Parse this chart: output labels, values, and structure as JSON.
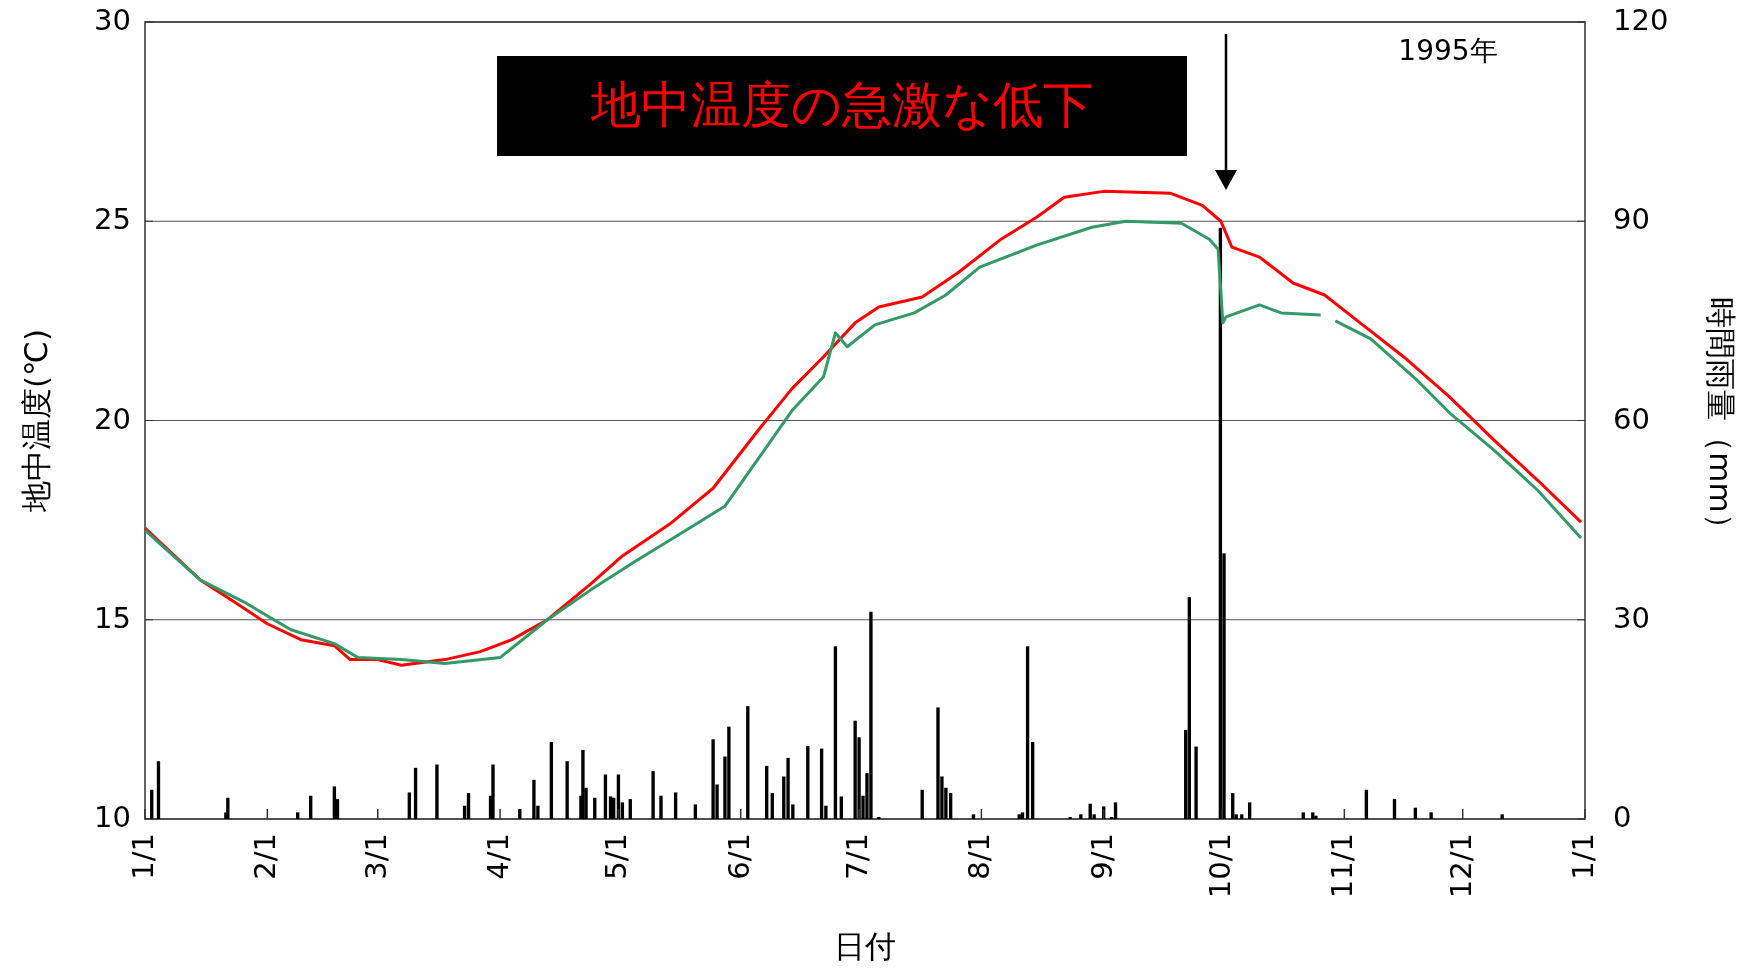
{
  "chart_data": {
    "type": "line",
    "xlabel": "日付",
    "ylabel": "地中温度(℃)",
    "y2label": "時間雨量（mm）",
    "xlim": [
      "1995-01-01",
      "1996-01-01"
    ],
    "xticks": [
      {
        "value": "1995-01-01",
        "label": "1/1"
      },
      {
        "value": "1995-02-01",
        "label": "2/1"
      },
      {
        "value": "1995-03-01",
        "label": "3/1"
      },
      {
        "value": "1995-04-01",
        "label": "4/1"
      },
      {
        "value": "1995-05-01",
        "label": "5/1"
      },
      {
        "value": "1995-06-01",
        "label": "6/1"
      },
      {
        "value": "1995-07-01",
        "label": "7/1"
      },
      {
        "value": "1995-08-01",
        "label": "8/1"
      },
      {
        "value": "1995-09-01",
        "label": "9/1"
      },
      {
        "value": "1995-10-01",
        "label": "10/1"
      },
      {
        "value": "1995-11-01",
        "label": "11/1"
      },
      {
        "value": "1995-12-01",
        "label": "12/1"
      },
      {
        "value": "1996-01-01",
        "label": "1/1"
      }
    ],
    "ylim": [
      10,
      30
    ],
    "yticks": [
      10,
      15,
      20,
      25,
      30
    ],
    "y2lim": [
      0,
      120
    ],
    "y2ticks": [
      0,
      30,
      60,
      90,
      120
    ],
    "grid": "y",
    "legend": false,
    "annotations": [
      "地中温度の急激な低下",
      "1995年"
    ],
    "series": [
      {
        "type": "bar",
        "axis": "y2",
        "color": "#000000",
        "x": [
          "1995-01-02T17:00",
          "1995-01-04T10:00",
          "1995-01-21T12:00",
          "1995-01-22",
          "1995-02-08T17:00",
          "1995-02-12",
          "1995-02-18",
          "1995-02-18T19:00",
          "1995-03-09",
          "1995-03-10T14:00",
          "1995-03-16",
          "1995-03-23",
          "1995-03-24",
          "1995-03-29T14:00",
          "1995-03-30T05:00",
          "1995-04-06",
          "1995-04-09T14:00",
          "1995-04-10T14:00",
          "1995-04-14",
          "1995-04-18",
          "1995-04-21T12:00",
          "1995-04-22",
          "1995-04-22T19:00",
          "1995-04-25",
          "1995-04-27T17:00",
          "1995-04-29",
          "1995-04-29T19:00",
          "1995-05-01",
          "1995-05-02",
          "1995-05-04",
          "1995-05-09T19:00",
          "1995-05-11T19:00",
          "1995-05-15T12:00",
          "1995-05-20T12:00",
          "1995-05-25",
          "1995-05-26",
          "1995-05-28",
          "1995-05-29",
          "1995-06-02T19:00",
          "1995-06-07T14:00",
          "1995-06-09",
          "1995-06-11T22:00",
          "1995-06-13",
          "1995-06-14T05:00",
          "1995-06-18",
          "1995-06-21T12:00",
          "1995-06-22T14:00",
          "1995-06-25",
          "1995-06-26T12:00",
          "1995-06-30",
          "1995-07-01",
          "1995-07-02",
          "1995-07-03",
          "1995-07-04",
          "1995-07-06",
          "1995-07-17",
          "1995-07-21",
          "1995-07-22",
          "1995-07-23",
          "1995-07-24T05:00",
          "1995-07-30",
          "1995-08-10T14:00",
          "1995-08-11T10:00",
          "1995-08-12T17:00",
          "1995-08-14",
          "1995-08-23T12:00",
          "1995-08-26T05:00",
          "1995-08-28T14:00",
          "1995-08-29T14:00",
          "1995-09-01",
          "1995-09-03",
          "1995-09-04",
          "1995-09-21T19:00",
          "1995-09-22T17:00",
          "1995-09-24T10:00",
          "1995-09-30T14:00",
          "1995-10-01T12:00",
          "1995-10-03T17:00",
          "1995-10-04T14:00",
          "1995-10-06",
          "1995-10-08",
          "1995-10-21T14:00",
          "1995-10-24",
          "1995-10-24T19:00",
          "1995-11-06T14:00",
          "1995-11-13T17:00",
          "1995-11-19",
          "1995-11-23",
          "1995-12-11"
        ],
        "values": [
          4.4,
          8.7,
          1,
          3.2,
          1,
          3.5,
          4.9,
          3,
          4,
          7.7,
          8.2,
          2,
          3.9,
          3.5,
          8.2,
          1.5,
          5.9,
          2,
          11.6,
          8.7,
          3.5,
          10.4,
          4.7,
          3.2,
          6.7,
          3.4,
          3.2,
          6.7,
          2.5,
          3,
          7.2,
          3.5,
          4,
          2.2,
          12,
          5.2,
          9.4,
          13.9,
          17,
          8,
          3.9,
          6.4,
          9.2,
          2.2,
          11,
          10.6,
          2,
          26,
          3.4,
          14.8,
          12.3,
          3.5,
          6.9,
          31.2,
          0.3,
          4.4,
          16.8,
          6.4,
          4.7,
          3.9,
          0.7,
          0.7,
          1,
          26,
          11.6,
          0.3,
          0.7,
          2.3,
          0.7,
          1.9,
          0.3,
          2.5,
          13.4,
          33.4,
          10.9,
          89,
          40,
          3.9,
          0.7,
          0.7,
          2.5,
          1,
          1,
          0.5,
          4.4,
          3,
          1.7,
          1,
          0.7
        ]
      },
      {
        "color": "#ff0000",
        "x": [
          "1995-01-01",
          "1995-01-15",
          "1995-01-23T14:00",
          "1995-02-01",
          "1995-02-09T12:00",
          "1995-02-18",
          "1995-02-22",
          "1995-03-01",
          "1995-03-07",
          "1995-03-18",
          "1995-03-27",
          "1995-04-04",
          "1995-04-13",
          "1995-04-24",
          "1995-05-02",
          "1995-05-14",
          "1995-05-25",
          "1995-06-05",
          "1995-06-14",
          "1995-06-22",
          "1995-06-30",
          "1995-07-06",
          "1995-07-17",
          "1995-07-26",
          "1995-08-06",
          "1995-08-15",
          "1995-08-22",
          "1995-09-01",
          "1995-09-18",
          "1995-09-26",
          "1995-09-30T17:00",
          "1995-10-03T12:00",
          "1995-10-10T12:00",
          "1995-10-19",
          "1995-10-27",
          "1995-11-05",
          "1995-11-16",
          "1995-11-27T14:00",
          "1995-12-09",
          "1995-12-20",
          "1995-12-31"
        ],
        "values": [
          17.3,
          16.0,
          15.45,
          14.9,
          14.5,
          14.35,
          14.0,
          14.0,
          13.86,
          14.0,
          14.2,
          14.5,
          15.0,
          15.9,
          16.6,
          17.4,
          18.3,
          19.7,
          20.8,
          21.6,
          22.45,
          22.85,
          23.1,
          23.7,
          24.55,
          25.1,
          25.6,
          25.75,
          25.7,
          25.4,
          25.0,
          24.35,
          24.1,
          23.45,
          23.15,
          22.45,
          21.6,
          20.6,
          19.5,
          18.5,
          17.45
        ]
      },
      {
        "color": "#339966",
        "x": [
          "1995-01-01",
          "1995-01-06T14:00",
          "1995-01-15",
          "1995-01-26",
          "1995-02-07",
          "1995-02-18",
          "1995-02-24",
          "1995-03-07",
          "1995-03-18",
          "1995-04-01",
          "1995-04-13",
          "1995-04-24",
          "1995-05-05",
          "1995-05-16T14:00",
          "1995-05-28",
          "1995-06-03",
          "1995-06-08",
          "1995-06-14",
          "1995-06-22",
          "1995-06-25",
          "1995-06-28",
          "1995-07-05",
          "1995-07-15",
          "1995-07-23",
          "1995-07-31T14:00",
          "1995-08-15",
          "1995-08-29",
          "1995-09-06T14:00",
          "1995-09-20T17:00",
          "1995-09-27T19:00",
          "1995-09-30",
          "1995-10-01T05:00",
          "1995-10-02",
          "1995-10-10T12:00",
          "1995-10-16",
          "1995-10-26",
          "1995-10-28",
          "1995-10-29T17:00",
          "1995-11-07T17:00",
          "1995-11-19",
          "1995-11-27T14:00",
          "1995-12-09",
          "1995-12-20",
          "1995-12-31"
        ],
        "values": [
          17.25,
          16.75,
          16.0,
          15.45,
          14.75,
          14.4,
          14.05,
          14.0,
          13.9,
          14.05,
          15.0,
          15.75,
          16.45,
          17.15,
          17.85,
          18.7,
          19.4,
          20.25,
          21.1,
          22.2,
          21.85,
          22.4,
          22.7,
          23.15,
          23.85,
          24.4,
          24.85,
          25.0,
          24.95,
          24.55,
          24.3,
          22.45,
          22.6,
          22.9,
          22.7,
          22.65,
          null,
          22.5,
          22.05,
          21.05,
          20.2,
          19.25,
          18.25,
          17.05
        ]
      }
    ]
  }
}
